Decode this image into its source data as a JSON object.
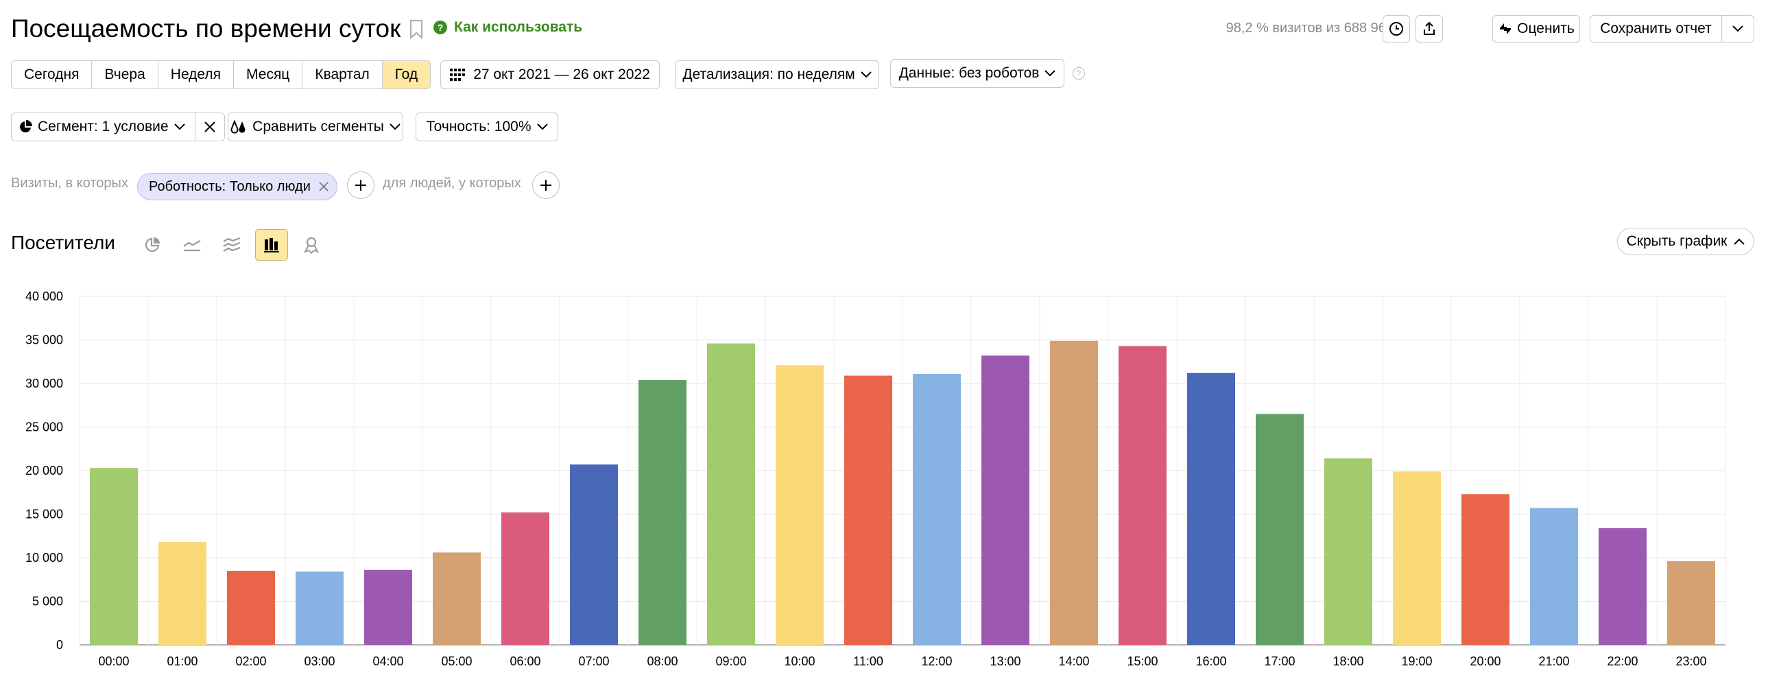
{
  "header": {
    "title": "Посещаемость по времени суток",
    "howto_label": "Как использовать",
    "visits_info": "98,2 % визитов из 688 964",
    "rate_label": "Оценить",
    "save_report_label": "Сохранить отчет"
  },
  "period": {
    "items": [
      {
        "label": "Сегодня"
      },
      {
        "label": "Вчера"
      },
      {
        "label": "Неделя"
      },
      {
        "label": "Месяц"
      },
      {
        "label": "Квартал"
      },
      {
        "label": "Год"
      }
    ],
    "active": "Год",
    "date_range": "27 окт 2021 — 26 окт 2022",
    "detail_label": "Детализация: по неделям",
    "data_label": "Данные: без роботов"
  },
  "segment": {
    "label": "Сегмент: 1 условие",
    "compare_label": "Сравнить сегменты",
    "accuracy_label": "Точность: 100%"
  },
  "filter": {
    "visits_label": "Визиты, в которых",
    "chip_label": "Роботность: Только люди",
    "people_label": "для людей, у которых"
  },
  "chart_header": {
    "title": "Посетители",
    "hide_label": "Скрыть график",
    "types": [
      "pie-chart-icon",
      "line-chart-icon",
      "area-chart-icon",
      "bar-chart-icon",
      "map-icon"
    ],
    "active_type": "bar-chart-icon"
  },
  "chart_data": {
    "type": "bar",
    "categories": [
      "00:00",
      "01:00",
      "02:00",
      "03:00",
      "04:00",
      "05:00",
      "06:00",
      "07:00",
      "08:00",
      "09:00",
      "10:00",
      "11:00",
      "12:00",
      "13:00",
      "14:00",
      "15:00",
      "16:00",
      "17:00",
      "18:00",
      "19:00",
      "20:00",
      "21:00",
      "22:00",
      "23:00"
    ],
    "values": [
      20300,
      11800,
      8500,
      8400,
      8600,
      10600,
      15200,
      20700,
      30400,
      34600,
      32100,
      30900,
      31100,
      33200,
      34900,
      34300,
      31200,
      26500,
      21400,
      19900,
      17300,
      15700,
      13400,
      9600
    ],
    "ylim": [
      0,
      40000
    ],
    "yticks": [
      "0",
      "5 000",
      "10 000",
      "15 000",
      "20 000",
      "25 000",
      "30 000",
      "35 000",
      "40 000"
    ],
    "ytick_values": [
      0,
      5000,
      10000,
      15000,
      20000,
      25000,
      30000,
      35000,
      40000
    ],
    "grid": true,
    "colors": [
      "#a2cb6e",
      "#f9d976",
      "#ea644a",
      "#86b3e3",
      "#9d59b2",
      "#d4a172",
      "#da5b7e",
      "#4a68b8",
      "#629f65"
    ]
  }
}
